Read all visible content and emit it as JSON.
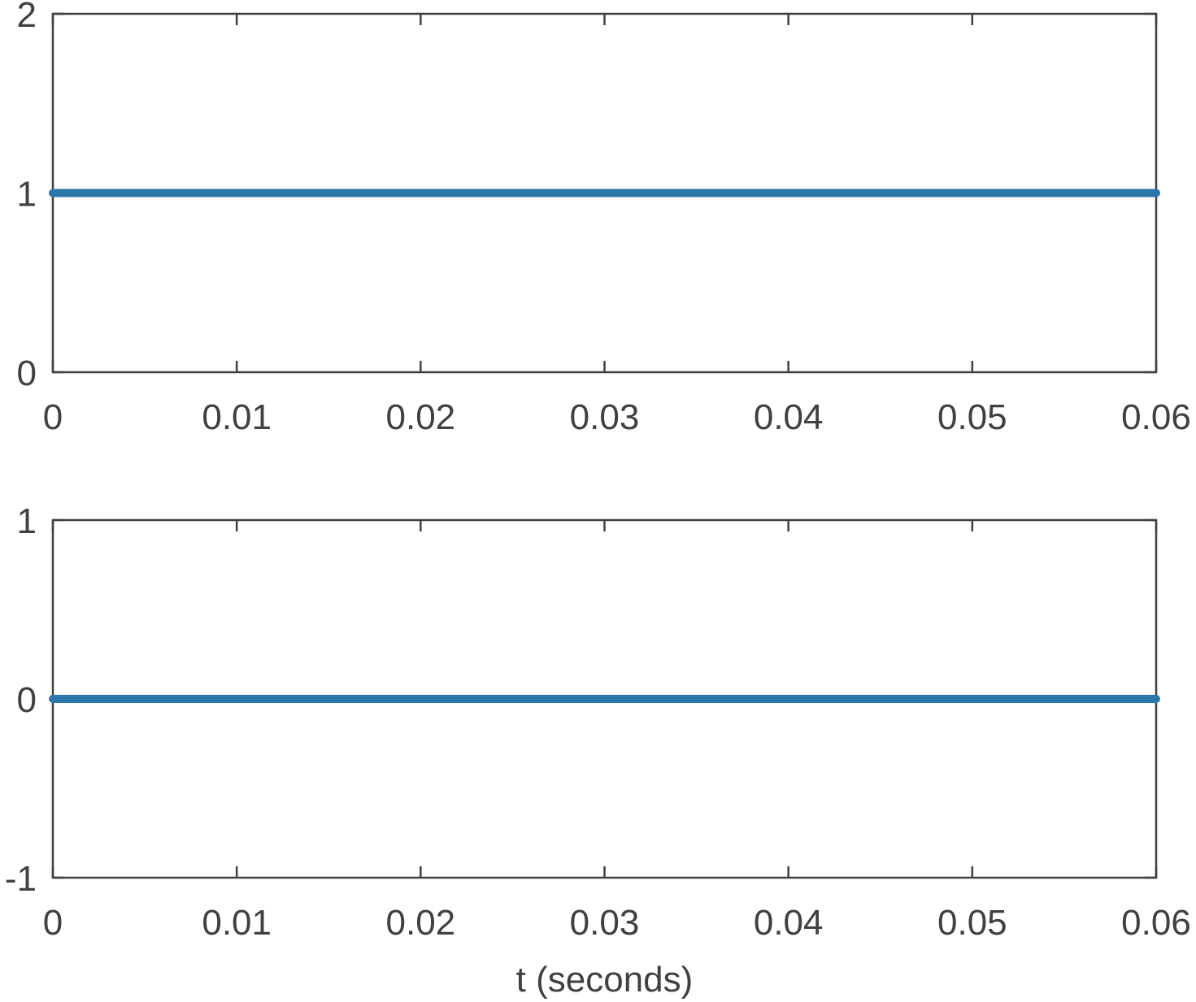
{
  "chart_data": [
    {
      "type": "line",
      "x": [
        0,
        0.06
      ],
      "series": [
        {
          "color": "#2a76ab",
          "values": [
            1,
            1
          ]
        }
      ],
      "xlim": [
        0,
        0.06
      ],
      "xticks": [
        0,
        0.01,
        0.02,
        0.03,
        0.04,
        0.05,
        0.06
      ],
      "ylim": [
        0,
        2
      ],
      "yticks": [
        0,
        1,
        2
      ]
    },
    {
      "type": "line",
      "x": [
        0,
        0.06
      ],
      "series": [
        {
          "color": "#2a76ab",
          "values": [
            0,
            0
          ]
        }
      ],
      "xlim": [
        0,
        0.06
      ],
      "xticks": [
        0,
        0.01,
        0.02,
        0.03,
        0.04,
        0.05,
        0.06
      ],
      "ylim": [
        -1,
        1
      ],
      "yticks": [
        -1,
        0,
        1
      ],
      "xlabel": "t (seconds)"
    }
  ]
}
